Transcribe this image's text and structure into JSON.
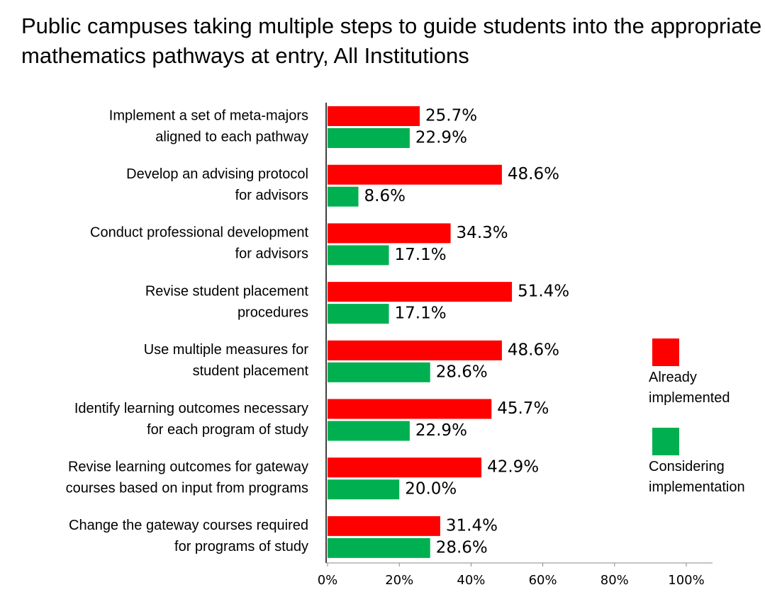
{
  "chart_data": {
    "type": "bar",
    "orientation": "horizontal",
    "title": "Public campuses taking multiple steps to guide students into the appropriate mathematics pathways at entry, All Institutions",
    "categories": [
      [
        "Implement  a set of meta-majors",
        "aligned to each pathway"
      ],
      [
        "Develop an advising protocol",
        "for advisors"
      ],
      [
        "Conduct professional development",
        "for advisors"
      ],
      [
        "Revise student placement",
        "procedures"
      ],
      [
        "Use multiple measures for",
        "student placement"
      ],
      [
        "Identify  learning outcomes necessary",
        "for each program of study"
      ],
      [
        "Revise learning outcomes for gateway",
        "courses based on input from programs"
      ],
      [
        "Change the gateway courses required",
        "for programs of study"
      ]
    ],
    "series": [
      {
        "name": "Already implemented",
        "color": "#ff0000",
        "values": [
          25.7,
          48.6,
          34.3,
          51.4,
          48.6,
          45.7,
          42.9,
          31.4
        ],
        "value_labels": [
          "25.7%",
          "48.6%",
          "34.3%",
          "51.4%",
          "48.6%",
          "45.7%",
          "42.9%",
          "31.4%"
        ]
      },
      {
        "name": "Considering implementation",
        "color": "#00b050",
        "values": [
          22.9,
          8.6,
          17.1,
          17.1,
          28.6,
          22.9,
          20.0,
          28.6
        ],
        "value_labels": [
          "22.9%",
          "8.6%",
          "17.1%",
          "17.1%",
          "28.6%",
          "22.9%",
          "20.0%",
          "28.6%"
        ]
      }
    ],
    "xlim": [
      0,
      100
    ],
    "xticks": [
      {
        "value": 0,
        "label": "0%"
      },
      {
        "value": 20,
        "label": "20%"
      },
      {
        "value": 40,
        "label": "40%"
      },
      {
        "value": 60,
        "label": "60%"
      },
      {
        "value": 80,
        "label": "80%"
      },
      {
        "value": 100,
        "label": "100%"
      }
    ],
    "legend": "right"
  }
}
